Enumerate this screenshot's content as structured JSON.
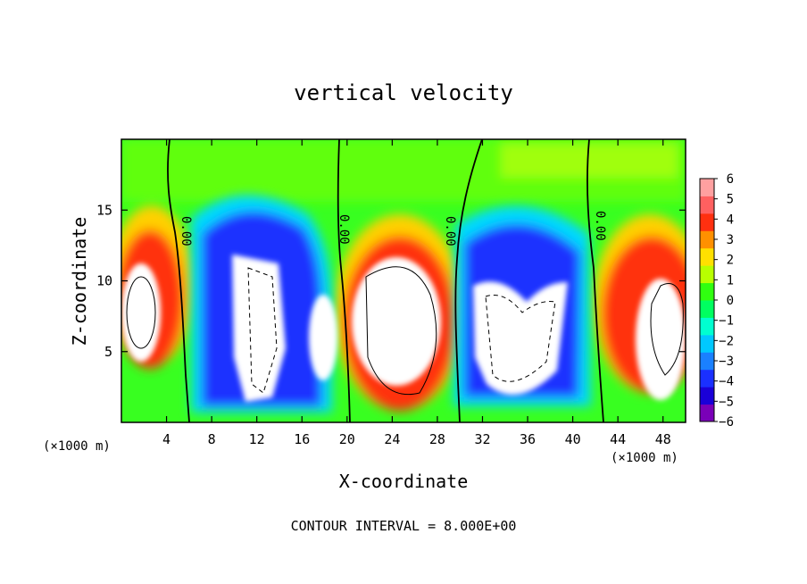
{
  "chart_data": {
    "type": "heatmap",
    "title": "vertical velocity",
    "xlabel": "X-coordinate",
    "ylabel": "Z-coordinate",
    "x_unit_label": "(×1000 m)",
    "z_unit_label": "(×1000 m)",
    "x_ticks": [
      "4",
      "8",
      "12",
      "16",
      "20",
      "24",
      "28",
      "32",
      "36",
      "40",
      "44",
      "48"
    ],
    "y_ticks": [
      "5",
      "10",
      "15"
    ],
    "xlim": [
      0,
      50
    ],
    "ylim": [
      0,
      20
    ],
    "colorbar": {
      "ticks": [
        "6",
        "5",
        "4",
        "3",
        "2",
        "1",
        "0",
        "−1",
        "−2",
        "−3",
        "−4",
        "−5",
        "−6"
      ],
      "range": [
        -6,
        6
      ],
      "colors": [
        "#7a00b8",
        "#1a00d8",
        "#1a30ff",
        "#1a80ff",
        "#00c8ff",
        "#00ffd0",
        "#00ff60",
        "#30ff10",
        "#b8ff00",
        "#ffe000",
        "#ff9000",
        "#ff3010",
        "#ff6060",
        "#ffa0a0"
      ]
    },
    "zero_contour_labels": [
      "0.00",
      "0.00",
      "0.00",
      "0.00"
    ],
    "footer": "CONTOUR INTERVAL = 8.000E+00"
  }
}
